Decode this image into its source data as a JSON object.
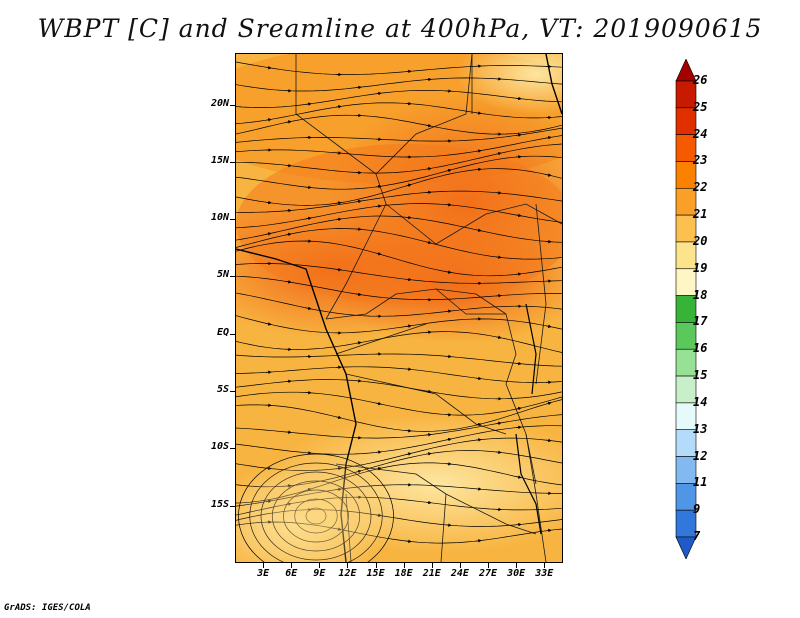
{
  "title": "WBPT [C] and Sreamline at 400hPa, VT: 2019090615",
  "credit": "GrADS: IGES/COLA",
  "map": {
    "lat_ticks": [
      {
        "label": "20N",
        "lat": 20
      },
      {
        "label": "15N",
        "lat": 15
      },
      {
        "label": "10N",
        "lat": 10
      },
      {
        "label": "5N",
        "lat": 5
      },
      {
        "label": "EQ",
        "lat": 0
      },
      {
        "label": "5S",
        "lat": -5
      },
      {
        "label": "10S",
        "lat": -10
      },
      {
        "label": "15S",
        "lat": -15
      }
    ],
    "lon_ticks": [
      {
        "label": "3E",
        "lon": 3
      },
      {
        "label": "6E",
        "lon": 6
      },
      {
        "label": "9E",
        "lon": 9
      },
      {
        "label": "12E",
        "lon": 12
      },
      {
        "label": "15E",
        "lon": 15
      },
      {
        "label": "18E",
        "lon": 18
      },
      {
        "label": "21E",
        "lon": 21
      },
      {
        "label": "24E",
        "lon": 24
      },
      {
        "label": "27E",
        "lon": 27
      },
      {
        "label": "30E",
        "lon": 30
      },
      {
        "label": "33E",
        "lon": 33
      }
    ],
    "lon_range": [
      0,
      35
    ],
    "lat_range": [
      -20,
      24.5
    ]
  },
  "colorbar": {
    "labels": [
      "26",
      "25",
      "24",
      "23",
      "22",
      "21",
      "20",
      "19",
      "18",
      "17",
      "16",
      "15",
      "14",
      "13",
      "12",
      "11",
      "9",
      "7"
    ],
    "colors": [
      "#a50000",
      "#c81a00",
      "#e13000",
      "#f55a00",
      "#fa8200",
      "#faa028",
      "#fcc050",
      "#fde48c",
      "#fef6c4",
      "#37b437",
      "#5ac85a",
      "#96e196",
      "#c8f0c8",
      "#e6fafa",
      "#b4dcfa",
      "#82b9f0",
      "#5096e6",
      "#3278dc",
      "#1e5ac8"
    ]
  }
}
